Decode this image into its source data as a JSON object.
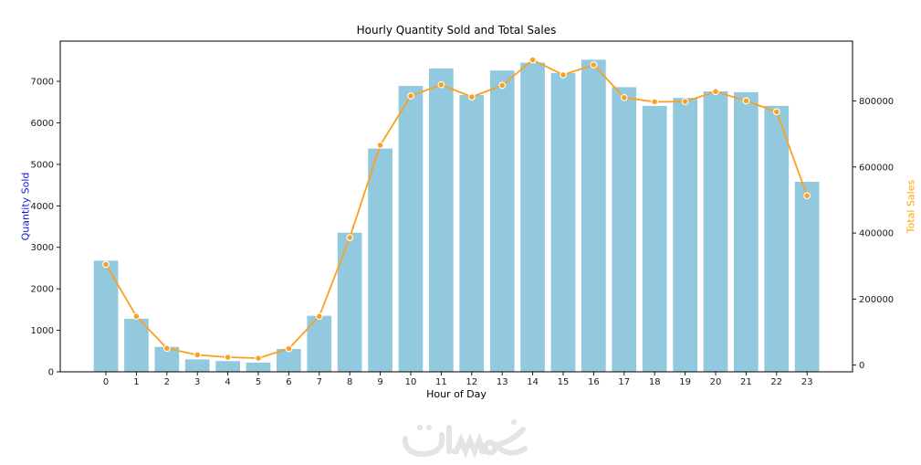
{
  "figure": {
    "title": "Hourly Quantity Sold and Total Sales",
    "xlabel": "Hour of Day",
    "left_ylabel": "Quantity Sold",
    "right_ylabel": "Total Sales"
  },
  "watermark": {
    "text": "خمسات",
    "color": "#e4e4e4"
  },
  "chart_data": {
    "type": "combo bar+line, dual y-axes",
    "title": "Hourly Quantity Sold and Total Sales",
    "xlabel": "Hour of Day",
    "categories": [
      0,
      1,
      2,
      3,
      4,
      5,
      6,
      7,
      8,
      9,
      10,
      11,
      12,
      13,
      14,
      15,
      16,
      17,
      18,
      19,
      20,
      21,
      22,
      23
    ],
    "series": [
      {
        "name": "Quantity Sold",
        "type": "bar",
        "yaxis": "left",
        "color": "#92C9DE",
        "values": [
          2680,
          1280,
          600,
          300,
          260,
          220,
          550,
          1350,
          3350,
          5380,
          6890,
          7310,
          6670,
          7260,
          7450,
          7200,
          7520,
          6860,
          6410,
          6600,
          6760,
          6740,
          6410,
          4580
        ]
      },
      {
        "name": "Total Sales",
        "type": "line",
        "yaxis": "right",
        "color": "#FBA01E",
        "marker": "circle",
        "marker_edge_color": "#ffffff",
        "values": [
          305000,
          148000,
          51000,
          31000,
          24000,
          21000,
          50000,
          148000,
          386000,
          666000,
          815000,
          849000,
          812000,
          847000,
          924000,
          879000,
          909000,
          810000,
          797000,
          798000,
          828000,
          800000,
          767000,
          513000
        ]
      }
    ],
    "left_axis": {
      "label": "Quantity Sold",
      "label_color": "#1414E0",
      "ticks": [
        0,
        1000,
        2000,
        3000,
        4000,
        5000,
        6000,
        7000
      ],
      "lim": [
        0,
        7970
      ]
    },
    "right_axis": {
      "label": "Total Sales",
      "label_color": "#FFA500",
      "ticks": [
        0,
        200000,
        400000,
        600000,
        800000
      ],
      "lim": [
        -20200,
        981000
      ]
    },
    "grid": false,
    "legend": "none",
    "tick_label_color": "#1a1a1a",
    "spine_color": "#000000"
  }
}
